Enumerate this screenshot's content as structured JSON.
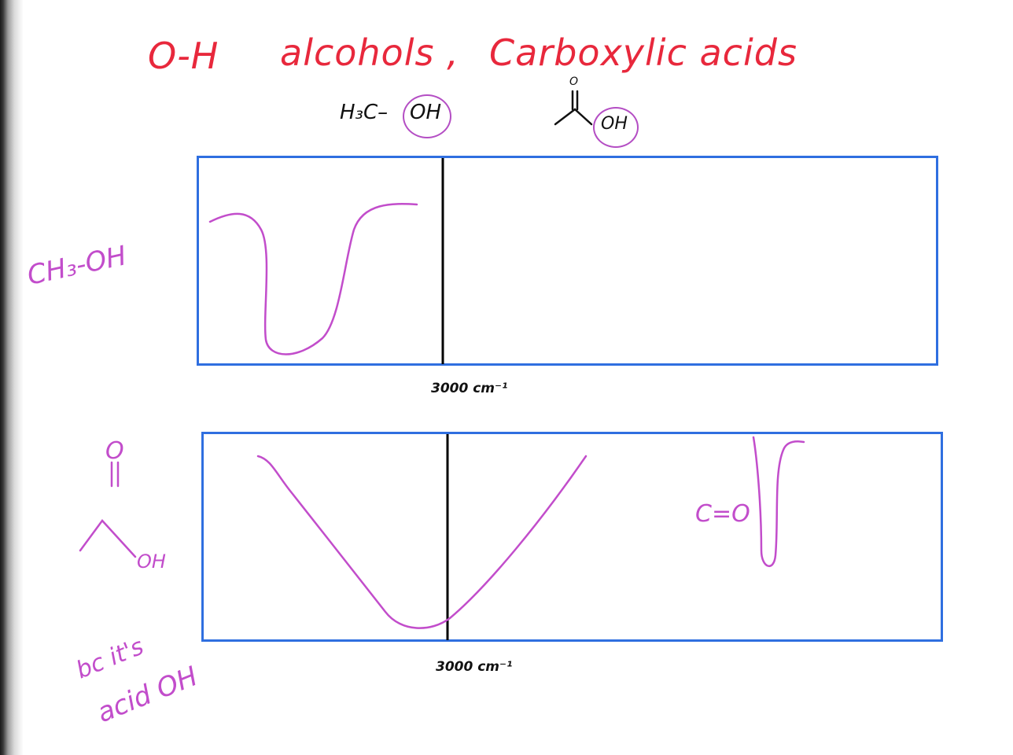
{
  "header": {
    "bond": "O-H",
    "title_alcohols": "alcohols ,",
    "title_acids": "Carboxylic acids"
  },
  "structures": {
    "alcohol_prefix": "H₃C–",
    "alcohol_oh": "OH",
    "acid_carbonyl_o": "O",
    "acid_oh": "OH"
  },
  "panel_top": {
    "side_label": "CH₃-OH",
    "axis_label": "3000 cm⁻¹"
  },
  "panel_bottom": {
    "side_o": "O",
    "side_oh": "OH",
    "peak_label": "C=O",
    "axis_label": "3000 cm⁻¹",
    "note_line1": "bc it's",
    "note_line2": "acid OH"
  },
  "colors": {
    "title": "#e8283c",
    "annotation": "#c24dcb",
    "panel_border": "#2f6fe0",
    "ink": "#111111"
  }
}
